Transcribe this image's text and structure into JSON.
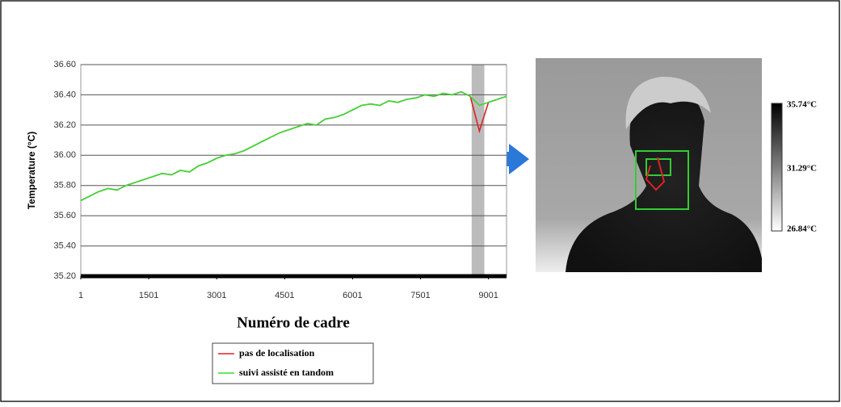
{
  "chart_data": {
    "type": "line",
    "y_label": "Temperature (°C)",
    "x_label": "Numéro de cadre",
    "x": [
      1,
      200,
      400,
      600,
      800,
      1000,
      1200,
      1400,
      1600,
      1800,
      2000,
      2200,
      2400,
      2600,
      2800,
      3000,
      3200,
      3400,
      3600,
      3800,
      4000,
      4200,
      4400,
      4600,
      4800,
      5000,
      5200,
      5400,
      5600,
      5800,
      6000,
      6200,
      6400,
      6600,
      6800,
      7000,
      7200,
      7400,
      7600,
      7800,
      8000,
      8200,
      8400,
      8600,
      8800,
      9000,
      9200,
      9400
    ],
    "series": [
      {
        "name": "pas de localisation",
        "color": "#e02020",
        "values": [
          35.7,
          35.73,
          35.76,
          35.78,
          35.77,
          35.8,
          35.82,
          35.84,
          35.86,
          35.88,
          35.87,
          35.9,
          35.89,
          35.93,
          35.95,
          35.98,
          36.0,
          36.01,
          36.03,
          36.06,
          36.09,
          36.12,
          36.15,
          36.17,
          36.19,
          36.21,
          36.2,
          36.24,
          36.25,
          36.27,
          36.3,
          36.33,
          36.34,
          36.33,
          36.36,
          36.35,
          36.37,
          36.38,
          36.4,
          36.39,
          36.41,
          36.4,
          36.42,
          36.39,
          36.16,
          36.35,
          36.37,
          36.39
        ]
      },
      {
        "name": "suivi assisté en tandom",
        "color": "#33dd33",
        "values": [
          35.7,
          35.73,
          35.76,
          35.78,
          35.77,
          35.8,
          35.82,
          35.84,
          35.86,
          35.88,
          35.87,
          35.9,
          35.89,
          35.93,
          35.95,
          35.98,
          36.0,
          36.01,
          36.03,
          36.06,
          36.09,
          36.12,
          36.15,
          36.17,
          36.19,
          36.21,
          36.2,
          36.24,
          36.25,
          36.27,
          36.3,
          36.33,
          36.34,
          36.33,
          36.36,
          36.35,
          36.37,
          36.38,
          36.4,
          36.39,
          36.41,
          36.4,
          36.42,
          36.39,
          36.33,
          36.35,
          36.37,
          36.39
        ]
      }
    ],
    "highlight": [
      8630,
      8910
    ],
    "xlim": [
      1,
      9400
    ],
    "xticks": [
      1,
      1501,
      3001,
      4501,
      6001,
      7501,
      9001
    ],
    "ylim": [
      35.2,
      36.6
    ],
    "yticks": [
      {
        "value": 35.2,
        "label": "35.20"
      },
      {
        "value": 35.4,
        "label": "35.40"
      },
      {
        "value": 35.6,
        "label": "35.60"
      },
      {
        "value": 35.8,
        "label": "35.80"
      },
      {
        "value": 36.0,
        "label": "36.00"
      },
      {
        "value": 36.2,
        "label": "36.20"
      },
      {
        "value": 36.4,
        "label": "36.40"
      },
      {
        "value": 36.6,
        "label": "36.60"
      }
    ],
    "grid": true
  },
  "thermal_image": {
    "scale_labels": [
      "35.74°C",
      "31.29°C",
      "26.84°C"
    ]
  }
}
